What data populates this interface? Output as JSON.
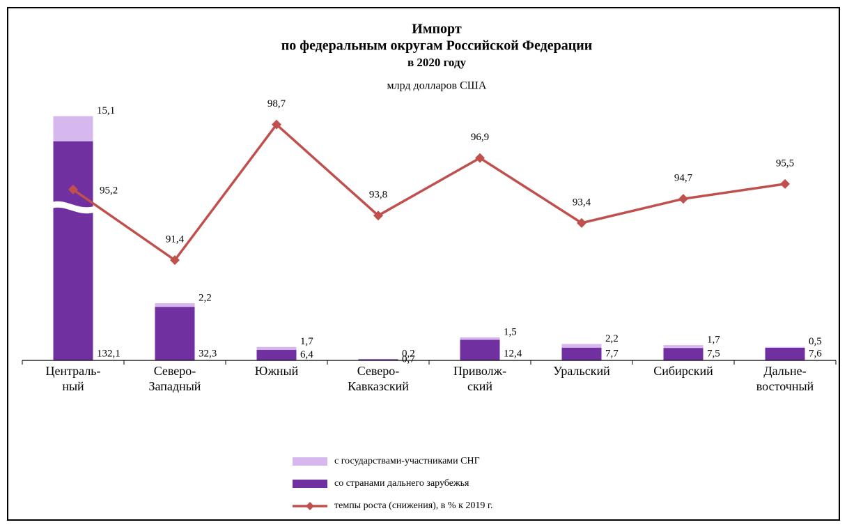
{
  "chart_data": {
    "type": "bar_line",
    "title": [
      "Импорт",
      "по федеральным округам Российской Федерации",
      "в 2020 году"
    ],
    "subtitle": "млрд долларов США",
    "categories": [
      "Централь-\nный",
      "Северо-\nЗападный",
      "Южный",
      "Северо-\nКавказский",
      "Приволж-\nский",
      "Уральский",
      "Сибирский",
      "Дальне-\nвосточный"
    ],
    "ylim": [
      0,
      150
    ],
    "y2lim": [
      86,
      99.4
    ],
    "series": [
      {
        "name": "со странами дальнего зарубежья",
        "color": "#7030a0",
        "kind": "bar",
        "values": [
          132.1,
          32.3,
          6.4,
          0.7,
          12.4,
          7.7,
          7.5,
          7.6
        ],
        "value_labels": [
          "132,1",
          "32,3",
          "6,4",
          "0,7",
          "12,4",
          "7,7",
          "7,5",
          "7,6"
        ]
      },
      {
        "name": "с государствами-участниками СНГ",
        "color": "#d7b8ee",
        "kind": "bar",
        "values": [
          15.1,
          2.2,
          1.7,
          0.2,
          1.5,
          2.2,
          1.7,
          0.5
        ],
        "value_labels": [
          "15,1",
          "2,2",
          "1,7",
          "0,2",
          "1,5",
          "2,2",
          "1,7",
          "0,5"
        ]
      },
      {
        "name": "темпы роста (снижения), в % к 2019 г.",
        "color": "#c0504d",
        "kind": "line",
        "axis": "y2",
        "values": [
          95.2,
          91.4,
          98.7,
          93.8,
          96.9,
          93.4,
          94.7,
          95.5
        ],
        "value_labels": [
          "95,2",
          "91,4",
          "98,7",
          "93,8",
          "96,9",
          "93,4",
          "94,7",
          "95,5"
        ]
      }
    ],
    "legend_order": [
      1,
      0,
      2
    ],
    "legend": "bottom"
  }
}
